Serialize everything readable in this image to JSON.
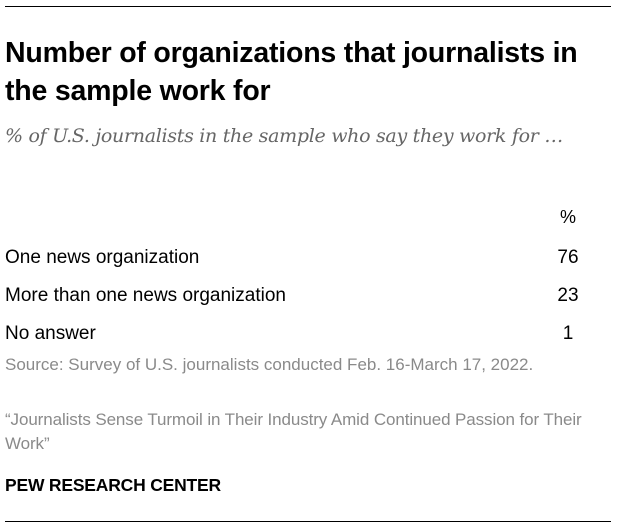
{
  "chart_data": {
    "type": "table",
    "title": "Number of organizations that journalists in the sample work for",
    "subtitle": "% of U.S. journalists in the sample who say they work for …",
    "column_header": "%",
    "rows": [
      {
        "label": "One news organization",
        "value": 76
      },
      {
        "label": "More than one news organization",
        "value": 23
      },
      {
        "label": "No answer",
        "value": 1
      }
    ]
  },
  "source": "Source: Survey of U.S. journalists conducted Feb. 16-March 17, 2022.",
  "report_title": "“Journalists Sense Turmoil in Their Industry Amid Continued Passion for Their Work”",
  "branding": "PEW RESEARCH CENTER"
}
